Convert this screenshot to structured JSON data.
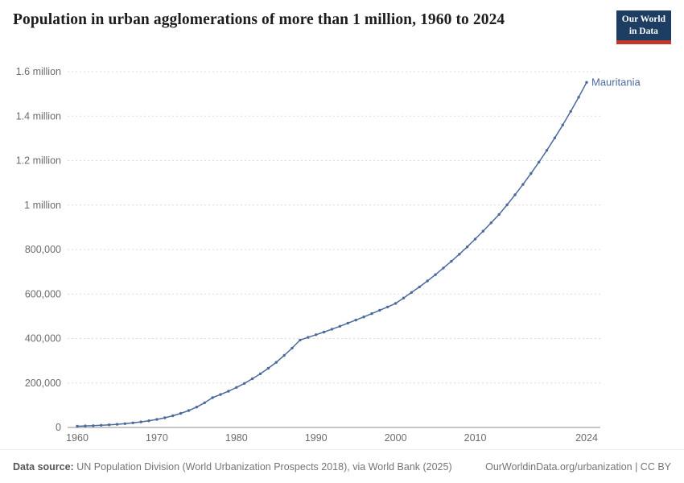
{
  "header": {
    "title": "Population in urban agglomerations of more than 1 million, 1960 to 2024",
    "logo": {
      "line1": "Our World",
      "line2": "in Data",
      "bg_color": "#1d3d63",
      "accent_color": "#c0392b"
    }
  },
  "chart_data": {
    "type": "line",
    "title": "Population in urban agglomerations of more than 1 million, 1960 to 2024",
    "xlabel": "",
    "ylabel": "",
    "xlim": [
      1960,
      2024
    ],
    "ylim": [
      0,
      1600000
    ],
    "grid": "horizontal-dashed",
    "legend_position": "end-of-line-label",
    "x_ticks": [
      1960,
      1970,
      1980,
      1990,
      2000,
      2010,
      2024
    ],
    "y_ticks": [
      {
        "value": 0,
        "label": "0"
      },
      {
        "value": 200000,
        "label": "200,000"
      },
      {
        "value": 400000,
        "label": "400,000"
      },
      {
        "value": 600000,
        "label": "600,000"
      },
      {
        "value": 800000,
        "label": "800,000"
      },
      {
        "value": 1000000,
        "label": "1 million"
      },
      {
        "value": 1200000,
        "label": "1.2 million"
      },
      {
        "value": 1400000,
        "label": "1.4 million"
      },
      {
        "value": 1600000,
        "label": "1.6 million"
      }
    ],
    "series": [
      {
        "name": "Mauritania",
        "color": "#4c6a9c",
        "x": [
          1960,
          1961,
          1962,
          1963,
          1964,
          1965,
          1966,
          1967,
          1968,
          1969,
          1970,
          1971,
          1972,
          1973,
          1974,
          1975,
          1976,
          1977,
          1978,
          1979,
          1980,
          1981,
          1982,
          1983,
          1984,
          1985,
          1986,
          1987,
          1988,
          1989,
          1990,
          1991,
          1992,
          1993,
          1994,
          1995,
          1996,
          1997,
          1998,
          1999,
          2000,
          2001,
          2002,
          2003,
          2004,
          2005,
          2006,
          2007,
          2008,
          2009,
          2010,
          2011,
          2012,
          2013,
          2014,
          2015,
          2016,
          2017,
          2018,
          2019,
          2020,
          2021,
          2022,
          2023,
          2024
        ],
        "values": [
          5600,
          6750,
          8130,
          9800,
          11800,
          14200,
          17100,
          20600,
          24900,
          30000,
          36100,
          43500,
          52400,
          63200,
          76100,
          91700,
          111000,
          134000,
          148000,
          163000,
          180000,
          198000,
          219000,
          241000,
          266000,
          293000,
          324000,
          357000,
          393000,
          405000,
          417000,
          429000,
          442000,
          455000,
          469000,
          483000,
          497000,
          512000,
          527000,
          542000,
          558000,
          582000,
          607000,
          632000,
          659000,
          687000,
          717000,
          747000,
          779000,
          812000,
          847000,
          883000,
          920000,
          958000,
          1001000,
          1046000,
          1093000,
          1142000,
          1193000,
          1246000,
          1302000,
          1360000,
          1421000,
          1485000,
          1552000
        ]
      }
    ]
  },
  "footer": {
    "source_label": "Data source:",
    "source_text": " UN Population Division (World Urbanization Prospects 2018), via World Bank (2025)",
    "link_text": "OurWorldinData.org/urbanization | CC BY"
  }
}
